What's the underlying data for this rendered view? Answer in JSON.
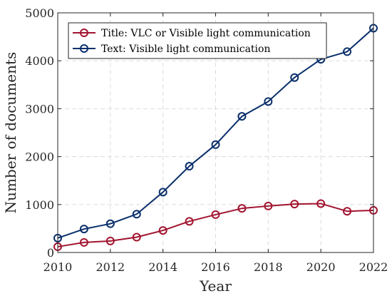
{
  "chart_data": {
    "type": "line",
    "x": [
      2010,
      2011,
      2012,
      2013,
      2014,
      2015,
      2016,
      2017,
      2018,
      2019,
      2020,
      2021,
      2022
    ],
    "series": [
      {
        "name": "Title: VLC or Visible light communication",
        "color": "#a2142f",
        "values": [
          120,
          210,
          240,
          320,
          460,
          650,
          790,
          920,
          970,
          1010,
          1020,
          860,
          880
        ]
      },
      {
        "name": "Text: Visible light communication",
        "color": "#0a2f6b",
        "values": [
          300,
          490,
          600,
          800,
          1260,
          1800,
          2250,
          2840,
          3150,
          3650,
          4030,
          4190,
          4680
        ]
      }
    ],
    "xlabel": "Year",
    "ylabel": "Number of documents",
    "xlim": [
      2010,
      2022
    ],
    "ylim": [
      0,
      5000
    ],
    "xticks": [
      2010,
      2012,
      2014,
      2016,
      2018,
      2020,
      2022
    ],
    "yticks": [
      0,
      1000,
      2000,
      3000,
      4000,
      5000
    ],
    "grid": true,
    "grid_style": "dashed",
    "legend_position": "top-left",
    "marker": "circle"
  }
}
